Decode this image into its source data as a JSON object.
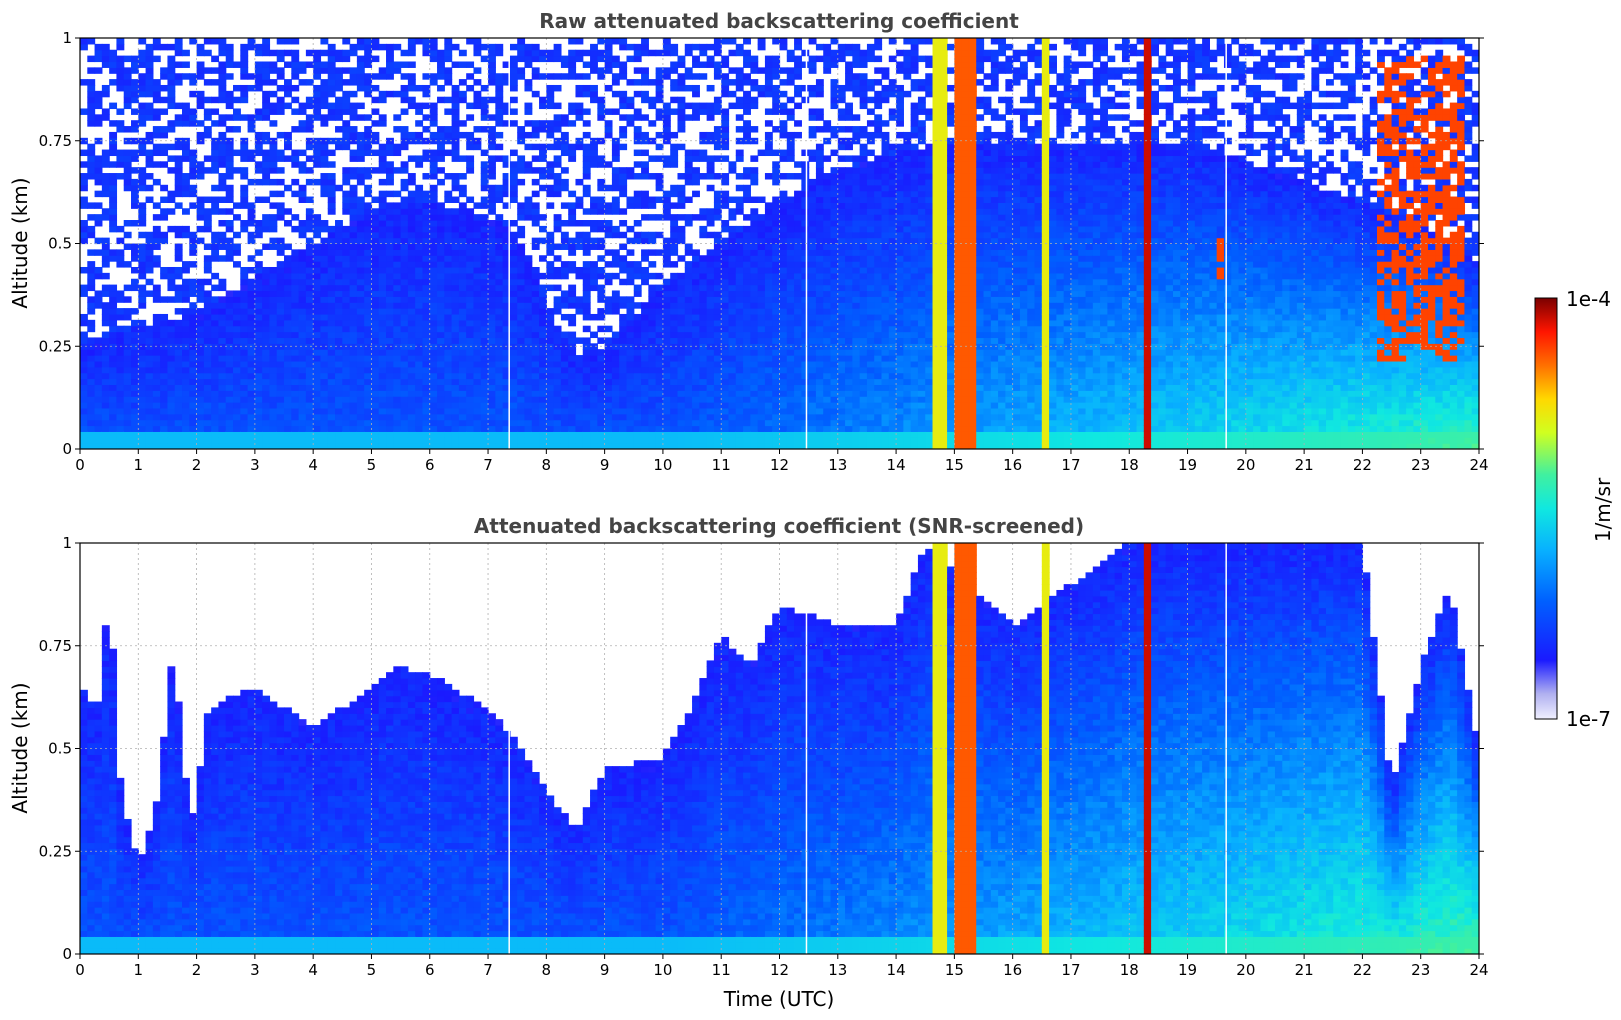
{
  "chart_data": [
    {
      "type": "heatmap",
      "title": "Raw attenuated backscattering coefficient",
      "xlabel": "",
      "ylabel": "Altitude (km)",
      "xlim": [
        0,
        24
      ],
      "ylim": [
        0,
        1
      ],
      "xticks": [
        "0",
        "1",
        "2",
        "3",
        "4",
        "5",
        "6",
        "7",
        "8",
        "9",
        "10",
        "11",
        "12",
        "13",
        "14",
        "15",
        "16",
        "17",
        "18",
        "19",
        "20",
        "21",
        "22",
        "23",
        "24"
      ],
      "yticks": [
        "0",
        "0.25",
        "0.5",
        "0.75",
        "1"
      ],
      "grid": true,
      "screened": false,
      "features": {
        "boundary_layer_top_km": [
          [
            0,
            0.25
          ],
          [
            1,
            0.3
          ],
          [
            2,
            0.33
          ],
          [
            3,
            0.42
          ],
          [
            4,
            0.5
          ],
          [
            5,
            0.58
          ],
          [
            6,
            0.6
          ],
          [
            7,
            0.57
          ],
          [
            7.5,
            0.52
          ],
          [
            8,
            0.35
          ],
          [
            8.5,
            0.22
          ],
          [
            9,
            0.25
          ],
          [
            10,
            0.4
          ],
          [
            11,
            0.5
          ],
          [
            12,
            0.6
          ],
          [
            13,
            0.68
          ],
          [
            14,
            0.72
          ],
          [
            15,
            0.75
          ],
          [
            16,
            0.75
          ],
          [
            17,
            0.75
          ],
          [
            18,
            0.75
          ],
          [
            19,
            0.75
          ],
          [
            20,
            0.7
          ],
          [
            21,
            0.65
          ],
          [
            22,
            0.6
          ],
          [
            23,
            0.55
          ],
          [
            24,
            0.45
          ]
        ],
        "strong_vertical_bands_utc": [
          [
            14.6,
            14.9
          ],
          [
            15.0,
            15.35
          ],
          [
            16.45,
            16.6
          ],
          [
            18.25,
            18.35
          ]
        ],
        "white_gap_lines_utc": [
          7.35,
          12.45,
          19.65
        ],
        "cloud_layers": [
          {
            "t0": 19.45,
            "t1": 19.62,
            "z0": 0.4,
            "z1": 0.52
          },
          {
            "t0": 22.2,
            "t1": 23.8,
            "z0": 0.22,
            "z1": 0.95
          }
        ]
      }
    },
    {
      "type": "heatmap",
      "title": "Attenuated backscattering coefficient (SNR-screened)",
      "xlabel": "Time (UTC)",
      "ylabel": "Altitude (km)",
      "xlim": [
        0,
        24
      ],
      "ylim": [
        0,
        1
      ],
      "xticks": [
        "0",
        "1",
        "2",
        "3",
        "4",
        "5",
        "6",
        "7",
        "8",
        "9",
        "10",
        "11",
        "12",
        "13",
        "14",
        "15",
        "16",
        "17",
        "18",
        "19",
        "20",
        "21",
        "22",
        "23",
        "24"
      ],
      "yticks": [
        "0",
        "0.25",
        "0.5",
        "0.75",
        "1"
      ],
      "grid": true,
      "screened": true,
      "features": {
        "signal_top_km": [
          [
            0,
            0.65
          ],
          [
            0.3,
            0.6
          ],
          [
            0.5,
            0.9
          ],
          [
            0.7,
            0.4
          ],
          [
            1,
            0.22
          ],
          [
            1.3,
            0.35
          ],
          [
            1.6,
            0.75
          ],
          [
            1.9,
            0.3
          ],
          [
            2.2,
            0.6
          ],
          [
            3,
            0.65
          ],
          [
            4,
            0.55
          ],
          [
            5,
            0.65
          ],
          [
            5.5,
            0.7
          ],
          [
            6,
            0.68
          ],
          [
            7,
            0.6
          ],
          [
            7.5,
            0.52
          ],
          [
            8,
            0.4
          ],
          [
            8.5,
            0.3
          ],
          [
            9,
            0.45
          ],
          [
            10,
            0.48
          ],
          [
            10.5,
            0.6
          ],
          [
            11,
            0.78
          ],
          [
            11.5,
            0.7
          ],
          [
            12,
            0.85
          ],
          [
            13,
            0.8
          ],
          [
            14,
            0.8
          ],
          [
            14.5,
            1
          ],
          [
            16,
            0.8
          ],
          [
            17,
            0.9
          ],
          [
            18,
            1
          ],
          [
            20,
            1
          ],
          [
            22,
            1
          ],
          [
            22.5,
            0.4
          ],
          [
            23,
            0.7
          ],
          [
            23.5,
            0.9
          ],
          [
            24,
            0.5
          ]
        ],
        "strong_vertical_bands_utc": [
          [
            14.6,
            14.9
          ],
          [
            15.0,
            15.35
          ],
          [
            16.45,
            16.6
          ],
          [
            18.25,
            18.35
          ]
        ],
        "white_gap_lines_utc": [
          7.35,
          12.45,
          19.65
        ]
      }
    }
  ],
  "colorbar": {
    "label": "1/m/sr",
    "max_label": "1e-4",
    "min_label": "1e-7",
    "colors": [
      "#e8e8f8",
      "#b8b8f0",
      "#1a1aff",
      "#0050ff",
      "#0aa0ff",
      "#18e0e0",
      "#40f0a0",
      "#c0ff30",
      "#ffe000",
      "#ff8000",
      "#ff2000",
      "#800000"
    ]
  }
}
